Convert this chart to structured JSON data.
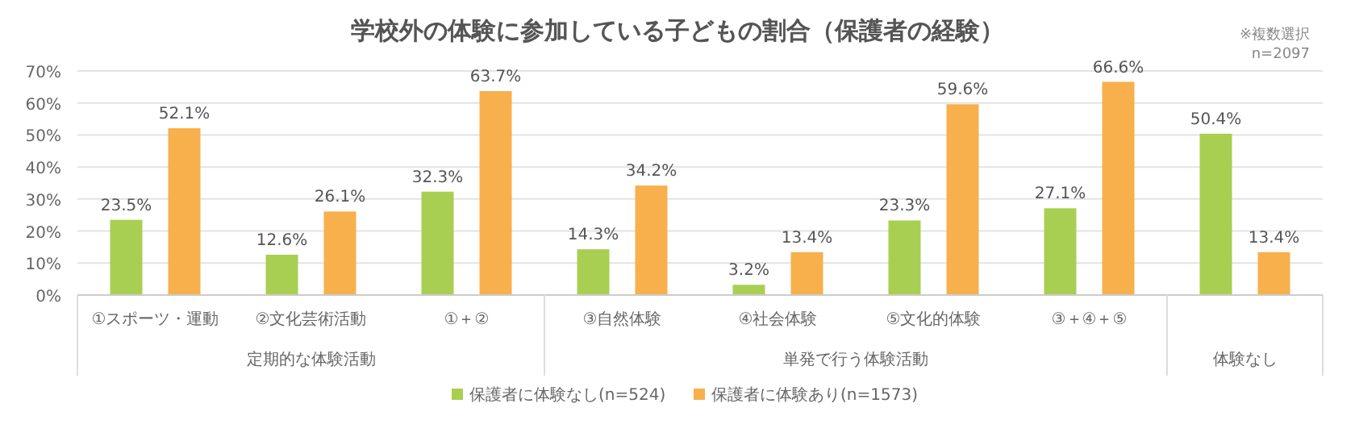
{
  "chart_data": {
    "type": "bar",
    "title": "学校外の体験に参加している子どもの割合（保護者の経験）",
    "categories": [
      "①スポーツ・運動",
      "②文化芸術活動",
      "①＋②",
      "③自然体験",
      "④社会体験",
      "⑤文化的体験",
      "③＋④＋⑤",
      null
    ],
    "series": [
      {
        "name": "保護者に体験なし(n=524)",
        "color": "#a8cf52",
        "values": [
          23.5,
          12.6,
          32.3,
          14.3,
          3.2,
          23.3,
          27.1,
          50.4
        ],
        "value_labels": [
          "23.5%",
          "12.6%",
          "32.3%",
          "14.3%",
          "3.2%",
          "23.3%",
          "27.1%",
          "50.4%"
        ]
      },
      {
        "name": "保護者に体験あり(n=1573)",
        "color": "#f7b04c",
        "values": [
          52.1,
          26.1,
          63.7,
          34.2,
          13.4,
          59.6,
          66.6,
          13.4
        ],
        "value_labels": [
          "52.1%",
          "26.1%",
          "63.7%",
          "34.2%",
          "13.4%",
          "59.6%",
          "66.6%",
          "13.4%"
        ]
      }
    ],
    "ylim": [
      0,
      70
    ],
    "yticks": [
      {
        "value": 0,
        "label": "0%"
      },
      {
        "value": 10,
        "label": "10%"
      },
      {
        "value": 20,
        "label": "20%"
      },
      {
        "value": 30,
        "label": "30%"
      },
      {
        "value": 40,
        "label": "40%"
      },
      {
        "value": 50,
        "label": "50%"
      },
      {
        "value": 60,
        "label": "60%"
      },
      {
        "value": 70,
        "label": "70%"
      }
    ],
    "grid": "y",
    "legend": "bottom",
    "annotations": [
      "※複数選択",
      "n=2097",
      "定期的な体験活動",
      "単発で行う体験活動",
      "体験なし"
    ]
  }
}
